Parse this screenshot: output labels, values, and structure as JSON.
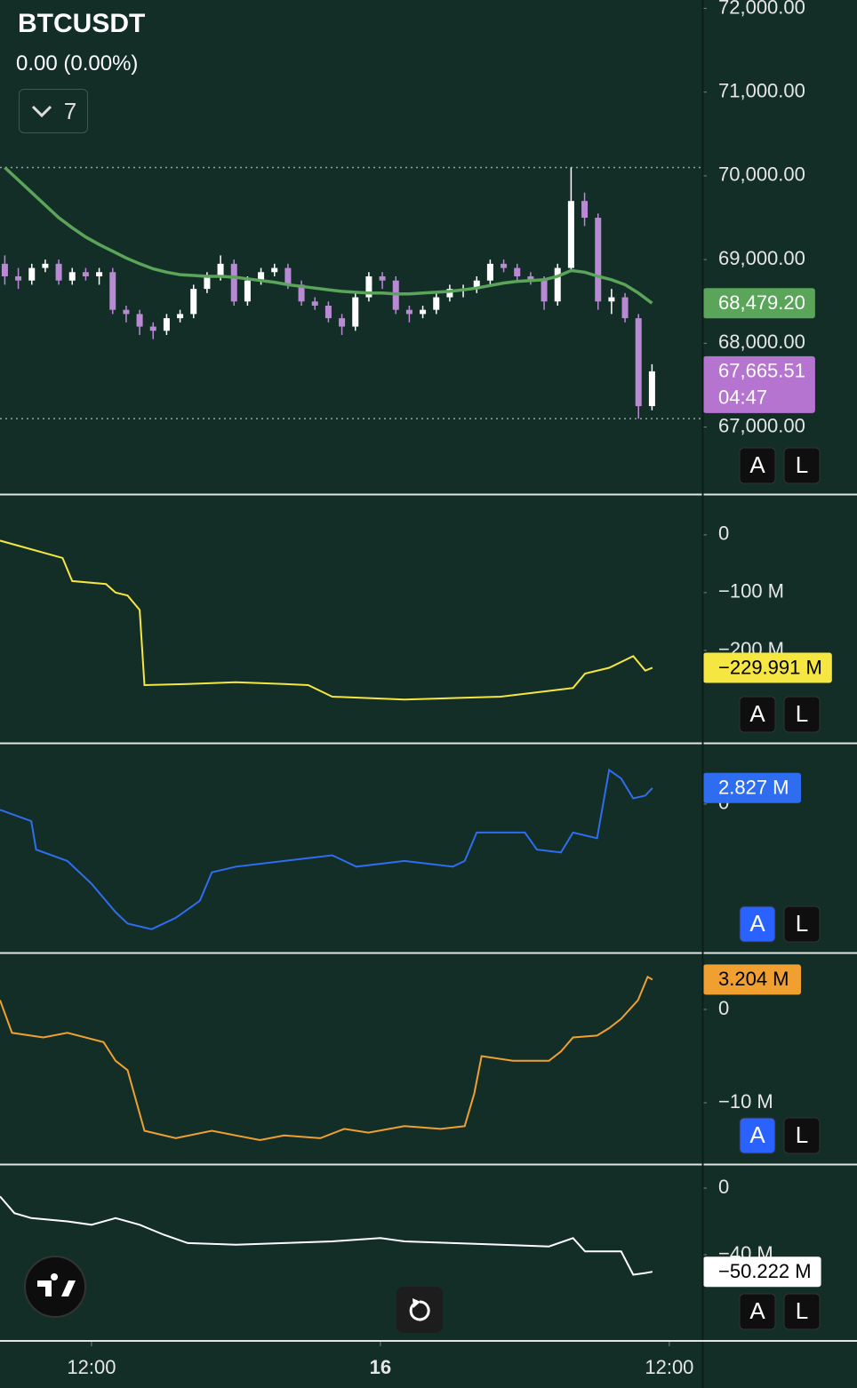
{
  "header": {
    "symbol": "BTCUSDT",
    "change": "0.00 (0.00%)",
    "indicator_count": 7
  },
  "x_axis": {
    "xlim": [
      -3.8,
      25.37
    ],
    "xticks": [
      {
        "value": 0,
        "label": "12:00"
      },
      {
        "value": 12,
        "label": "16"
      },
      {
        "value": 24,
        "label": "12:00"
      }
    ]
  },
  "chart_data": [
    {
      "type": "candlestick",
      "ylim": [
        66200,
        72100
      ],
      "yticks": [
        {
          "value": 72000,
          "label": "72,000.00"
        },
        {
          "value": 71000,
          "label": "71,000.00"
        },
        {
          "value": 70000,
          "label": "70,000.00"
        },
        {
          "value": 69000,
          "label": "69,000.00"
        },
        {
          "value": 68000,
          "label": "68,000.00"
        },
        {
          "value": 67000,
          "label": "67,000.00"
        }
      ],
      "up_color": "#ffffff",
      "down_color": "#b98ad4",
      "price_lines": [
        70100,
        67100
      ],
      "x": [
        -3.6,
        -3.04,
        -2.48,
        -1.92,
        -1.36,
        -0.8,
        -0.24,
        0.32,
        0.88,
        1.44,
        2,
        2.56,
        3.12,
        3.68,
        4.24,
        4.8,
        5.36,
        5.92,
        6.48,
        7.04,
        7.6,
        8.16,
        8.72,
        9.28,
        9.84,
        10.4,
        10.96,
        11.52,
        12.08,
        12.64,
        13.2,
        13.76,
        14.32,
        14.88,
        15.44,
        16,
        16.56,
        17.12,
        17.68,
        18.24,
        18.8,
        19.36,
        19.92,
        20.48,
        21.04,
        21.6,
        22.16,
        22.72,
        23.28
      ],
      "open": [
        68950,
        68800,
        68750,
        68900,
        68950,
        68750,
        68850,
        68800,
        68850,
        68400,
        68350,
        68200,
        68150,
        68300,
        68350,
        68650,
        68800,
        68950,
        68500,
        68750,
        68850,
        68900,
        68700,
        68500,
        68450,
        68300,
        68200,
        68550,
        68800,
        68750,
        68400,
        68350,
        68400,
        68550,
        68650,
        68650,
        68750,
        68950,
        68900,
        68800,
        68750,
        68500,
        68900,
        69700,
        69500,
        68500,
        68550,
        68300,
        67250
      ],
      "high": [
        69050,
        68900,
        68950,
        69000,
        69000,
        68900,
        68900,
        68900,
        68900,
        68450,
        68400,
        68250,
        68350,
        68400,
        68700,
        68850,
        69050,
        69000,
        68800,
        68900,
        68950,
        68950,
        68750,
        68550,
        68500,
        68350,
        68600,
        68850,
        68850,
        68800,
        68450,
        68450,
        68600,
        68700,
        68700,
        68800,
        69000,
        69000,
        68950,
        68850,
        68800,
        68950,
        70100,
        69800,
        69550,
        68650,
        68600,
        68350,
        67750
      ],
      "low": [
        68700,
        68650,
        68700,
        68850,
        68700,
        68700,
        68750,
        68700,
        68350,
        68250,
        68100,
        68050,
        68100,
        68250,
        68300,
        68600,
        68750,
        68450,
        68450,
        68700,
        68800,
        68650,
        68450,
        68400,
        68250,
        68100,
        68150,
        68500,
        68650,
        68350,
        68250,
        68300,
        68350,
        68500,
        68550,
        68600,
        68700,
        68850,
        68750,
        68700,
        68400,
        68450,
        68850,
        69400,
        68400,
        68350,
        68250,
        67100,
        67200
      ],
      "close": [
        68800,
        68750,
        68900,
        68950,
        68750,
        68850,
        68800,
        68850,
        68400,
        68350,
        68200,
        68150,
        68300,
        68350,
        68650,
        68800,
        68950,
        68500,
        68750,
        68850,
        68900,
        68700,
        68500,
        68450,
        68300,
        68200,
        68550,
        68800,
        68750,
        68400,
        68350,
        68400,
        68550,
        68650,
        68650,
        68750,
        68950,
        68900,
        68800,
        68750,
        68500,
        68900,
        69700,
        69500,
        68500,
        68550,
        68300,
        67250,
        67665.51
      ],
      "last_label": "67,665.51",
      "countdown": "04:47",
      "last_color": "#b574cf",
      "ma": {
        "color": "#5aa55a",
        "values": [
          70100,
          69950,
          69800,
          69650,
          69500,
          69380,
          69270,
          69180,
          69100,
          69020,
          68950,
          68890,
          68850,
          68820,
          68810,
          68800,
          68800,
          68790,
          68770,
          68750,
          68730,
          68700,
          68680,
          68660,
          68640,
          68620,
          68610,
          68600,
          68600,
          68590,
          68590,
          68600,
          68610,
          68620,
          68640,
          68660,
          68690,
          68720,
          68740,
          68750,
          68760,
          68800,
          68870,
          68850,
          68800,
          68760,
          68700,
          68600,
          68479.2
        ],
        "last_label": "68,479.20"
      },
      "buttons": [
        {
          "label": "A",
          "active": false
        },
        {
          "label": "L",
          "active": false
        }
      ]
    },
    {
      "type": "line",
      "color": "#f5e642",
      "badge_text": "#000000",
      "ylim": [
        -360,
        69
      ],
      "yticks": [
        0,
        {
          "value": -100,
          "label": "−100 M"
        },
        {
          "value": -200,
          "label": "−200 M"
        }
      ],
      "x": [
        -3.8,
        -1.2,
        -0.8,
        0.6,
        1,
        1.5,
        2,
        2.2,
        4,
        6,
        8,
        9,
        10,
        13,
        17,
        19,
        20,
        20.5,
        21.5,
        22.5,
        23,
        23.3
      ],
      "values": [
        -10,
        -40,
        -80,
        -85,
        -100,
        -105,
        -130,
        -260,
        -258,
        -255,
        -258,
        -260,
        -280,
        -285,
        -280,
        -270,
        -265,
        -240,
        -230,
        -210,
        -235,
        -229.991
      ],
      "last_label": "−229.991 M",
      "buttons": [
        {
          "label": "A",
          "active": false
        },
        {
          "label": "L",
          "active": false
        }
      ]
    },
    {
      "type": "line",
      "color": "#2f6df0",
      "badge_text": "#ffffff",
      "ylim": [
        -26.1,
        10.6
      ],
      "yticks": [
        0
      ],
      "x": [
        -3.8,
        -2.5,
        -2.3,
        -1,
        0,
        1,
        1.5,
        2.5,
        3.5,
        4.5,
        5,
        6,
        8,
        10,
        11,
        13,
        15,
        15.5,
        16,
        18,
        18.5,
        19.5,
        20,
        21,
        21.5,
        22,
        22.5,
        23,
        23.3
      ],
      "values": [
        -1,
        -3,
        -8,
        -10,
        -14,
        -19,
        -21,
        -22,
        -20,
        -17,
        -12,
        -11,
        -10,
        -9,
        -11,
        -10,
        -11,
        -10,
        -5,
        -5,
        -8,
        -8.5,
        -5,
        -6,
        6,
        4.5,
        1,
        1.5,
        2.827
      ],
      "last_label": "2.827 M",
      "buttons": [
        {
          "label": "A",
          "active": true
        },
        {
          "label": "L",
          "active": false
        }
      ]
    },
    {
      "type": "line",
      "color": "#f0a030",
      "badge_text": "#000000",
      "ylim": [
        -16.57,
        6
      ],
      "yticks": [
        0,
        {
          "value": -10,
          "label": "−10 M"
        }
      ],
      "x": [
        -3.8,
        -3.3,
        -2,
        -1,
        0.5,
        1,
        1.5,
        2.2,
        3.5,
        5,
        6,
        7,
        8,
        9.5,
        10.5,
        11.5,
        13,
        14.5,
        15.5,
        15.9,
        16.2,
        17.5,
        19,
        19.5,
        20,
        21,
        21.5,
        22,
        22.7,
        23.1,
        23.3
      ],
      "values": [
        1,
        -2.5,
        -3,
        -2.5,
        -3.5,
        -5.5,
        -6.5,
        -13,
        -13.8,
        -13,
        -13.5,
        -14,
        -13.5,
        -13.8,
        -12.8,
        -13.2,
        -12.5,
        -12.8,
        -12.5,
        -9,
        -5,
        -5.5,
        -5.5,
        -4.5,
        -3,
        -2.8,
        -2,
        -1,
        1,
        3.5,
        3.204
      ],
      "last_label": "3.204 M",
      "buttons": [
        {
          "label": "A",
          "active": true
        },
        {
          "label": "L",
          "active": false
        }
      ]
    },
    {
      "type": "line",
      "color": "#ffffff",
      "badge_text": "#000000",
      "ylim": [
        -91.2,
        13.9
      ],
      "yticks": [
        0,
        {
          "value": -40,
          "label": "−40 M"
        }
      ],
      "x": [
        -3.8,
        -3.2,
        -2.5,
        -1,
        0,
        1,
        2,
        3,
        4,
        6,
        8,
        10,
        12,
        13,
        15,
        17,
        19,
        20,
        20.5,
        22,
        22.5,
        23,
        23.3
      ],
      "values": [
        -5,
        -15,
        -18,
        -20,
        -22,
        -18,
        -22,
        -28,
        -33,
        -34,
        -33,
        -32,
        -30,
        -32,
        -33,
        -34,
        -35,
        -30,
        -38,
        -38,
        -52,
        -51,
        -50.222
      ],
      "last_label": "−50.222 M",
      "buttons": [
        {
          "label": "A",
          "active": false
        },
        {
          "label": "L",
          "active": false
        }
      ]
    }
  ]
}
